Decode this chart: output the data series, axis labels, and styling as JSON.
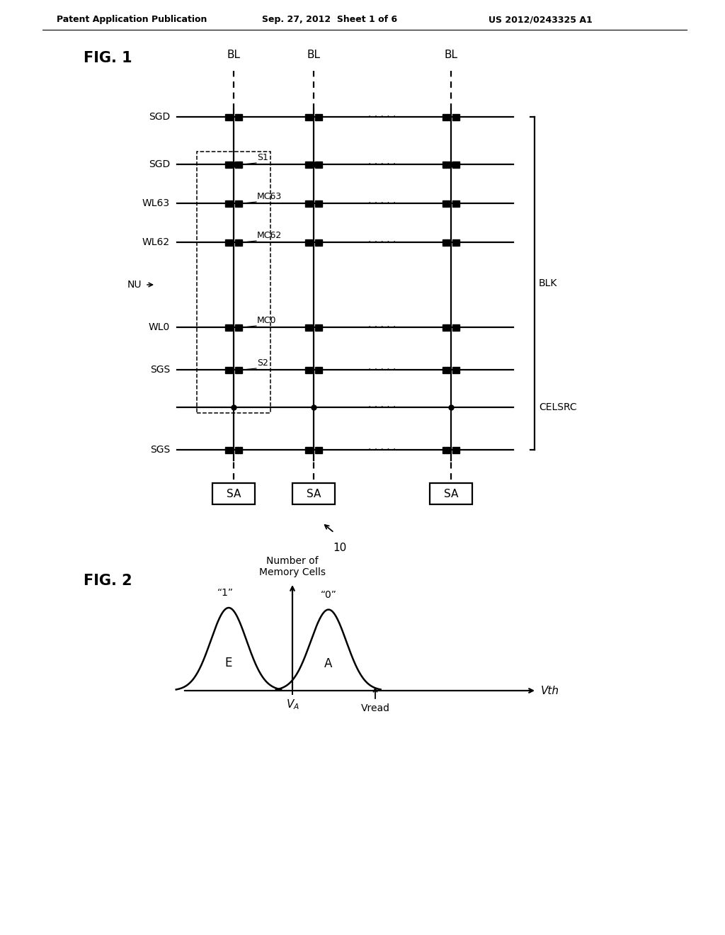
{
  "header_left": "Patent Application Publication",
  "header_mid": "Sep. 27, 2012  Sheet 1 of 6",
  "header_right": "US 2012/0243325 A1",
  "fig1_label": "FIG. 1",
  "fig2_label": "FIG. 2",
  "bg_color": "#ffffff",
  "line_color": "#000000",
  "blk_label": "BLK",
  "celsrc_label": "CELSRC",
  "bl_label": "BL",
  "sa_label": "SA",
  "fig1_note": "10",
  "fig2_ylabel": "Number of\nMemory Cells",
  "fig2_xlabel": "Vth",
  "fig2_E": "E",
  "fig2_A": "A",
  "fig2_label1": "“1”",
  "fig2_label0": "“0”",
  "fig2_VA": "V",
  "fig2_Vread": "Vread"
}
